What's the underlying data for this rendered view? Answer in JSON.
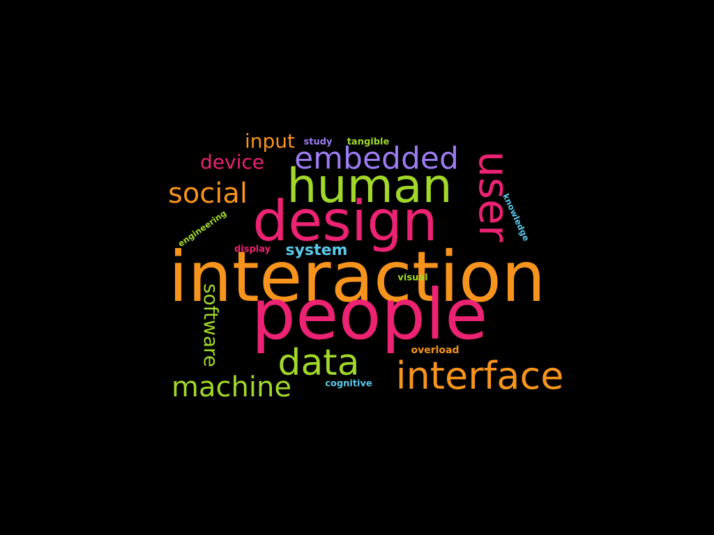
{
  "palette": {
    "background": "#000000",
    "orange": "#F7941D",
    "pink": "#EC2272",
    "green": "#A1D82A",
    "purple": "#9B7BF0",
    "cyan": "#5AC8EA"
  },
  "words": {
    "interaction": {
      "text": "interaction",
      "color": "#F7941D"
    },
    "people": {
      "text": "people",
      "color": "#EC2272"
    },
    "design": {
      "text": "design",
      "color": "#EC2272"
    },
    "human": {
      "text": "human",
      "color": "#A1D82A"
    },
    "user": {
      "text": "user",
      "color": "#EC2272"
    },
    "interface": {
      "text": "interface",
      "color": "#F7941D"
    },
    "data": {
      "text": "data",
      "color": "#A1D82A"
    },
    "embedded": {
      "text": "embedded",
      "color": "#9B7BF0"
    },
    "social": {
      "text": "social",
      "color": "#F7941D"
    },
    "machine": {
      "text": "machine",
      "color": "#A1D82A"
    },
    "software": {
      "text": "software",
      "color": "#A1D82A"
    },
    "device": {
      "text": "device",
      "color": "#EC2272"
    },
    "input": {
      "text": "input",
      "color": "#F7941D"
    },
    "system": {
      "text": "system",
      "color": "#5AC8EA"
    },
    "study": {
      "text": "study",
      "color": "#9B7BF0"
    },
    "tangible": {
      "text": "tangible",
      "color": "#A1D82A"
    },
    "knowledge": {
      "text": "knowledge",
      "color": "#5AC8EA"
    },
    "engineering": {
      "text": "engineering",
      "color": "#A1D82A"
    },
    "display": {
      "text": "display",
      "color": "#EC2272"
    },
    "visual": {
      "text": "visual",
      "color": "#A1D82A"
    },
    "overload": {
      "text": "overload",
      "color": "#F7941D"
    },
    "cognitive": {
      "text": "cognitive",
      "color": "#5AC8EA"
    }
  }
}
